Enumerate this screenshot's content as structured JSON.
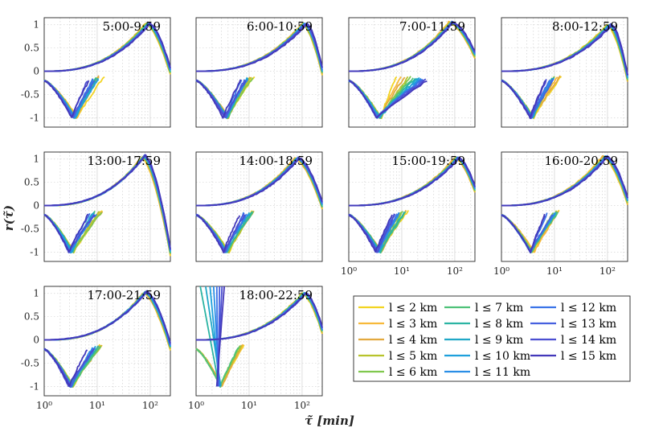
{
  "chart_data": {
    "type": "line",
    "ylabel": "r(τ̃)",
    "xlabel": "τ̃ [min]",
    "xscale": "log",
    "xlim": [
      1,
      240
    ],
    "ylim": [
      -1.2,
      1.15
    ],
    "yticks": [
      "1",
      "0.5",
      "0",
      "-0.5",
      "-1"
    ],
    "xticks": [
      "10⁰",
      "10¹",
      "10²"
    ],
    "grid": true,
    "legend_position": "bottom-right",
    "series_names": [
      "l ≤ 2 km",
      "l ≤ 3 km",
      "l ≤ 4 km",
      "l ≤ 5 km",
      "l ≤ 6 km",
      "l ≤ 7 km",
      "l ≤ 8 km",
      "l ≤ 9 km",
      "l ≤ 10 km",
      "l ≤ 11 km",
      "l ≤ 12 km",
      "l ≤ 13 km",
      "l ≤ 14 km",
      "l ≤ 15 km"
    ],
    "series_colors": [
      "#f2d422",
      "#f7b93a",
      "#e3a93f",
      "#b8c32c",
      "#80c84e",
      "#4fc279",
      "#2bb4a3",
      "#20a8c7",
      "#1ea0dc",
      "#2a8ee6",
      "#3b74e8",
      "#4660df",
      "#4c4fd1",
      "#4338ba"
    ],
    "panels": [
      {
        "title": "5:00-9:59",
        "peak_tau": 90,
        "peak_r": 1.02,
        "min_tau": 4,
        "min_r": -1.0,
        "tail_r": 0.0
      },
      {
        "title": "6:00-10:59",
        "peak_tau": 110,
        "peak_r": 1.02,
        "min_tau": 4,
        "min_r": -1.0,
        "tail_r": 0.0
      },
      {
        "title": "7:00-11:59",
        "peak_tau": 85,
        "peak_r": 1.05,
        "min_tau": 4,
        "min_r": -1.0,
        "tail_r": 0.35
      },
      {
        "title": "8:00-12:59",
        "peak_tau": 110,
        "peak_r": 1.0,
        "min_tau": 4,
        "min_r": -1.0,
        "tail_r": -0.15
      },
      {
        "title": "13:00-17:59",
        "peak_tau": 75,
        "peak_r": 1.05,
        "min_tau": 3.5,
        "min_r": -1.0,
        "tail_r": -1.0
      },
      {
        "title": "14:00-18:59",
        "peak_tau": 80,
        "peak_r": 1.02,
        "min_tau": 4,
        "min_r": -1.0,
        "tail_r": 0.0
      },
      {
        "title": "15:00-19:59",
        "peak_tau": 110,
        "peak_r": 1.02,
        "min_tau": 4,
        "min_r": -1.0,
        "tail_r": 0.35
      },
      {
        "title": "16:00-20:59",
        "peak_tau": 90,
        "peak_r": 1.05,
        "min_tau": 4,
        "min_r": -1.0,
        "tail_r": 0.1
      },
      {
        "title": "17:00-21:59",
        "peak_tau": 80,
        "peak_r": 1.02,
        "min_tau": 3.5,
        "min_r": -1.0,
        "tail_r": -0.15
      },
      {
        "title": "18:00-22:59",
        "peak_tau": 110,
        "peak_r": 1.0,
        "min_tau": 3,
        "min_r": -1.0,
        "tail_r": 0.2
      }
    ]
  }
}
